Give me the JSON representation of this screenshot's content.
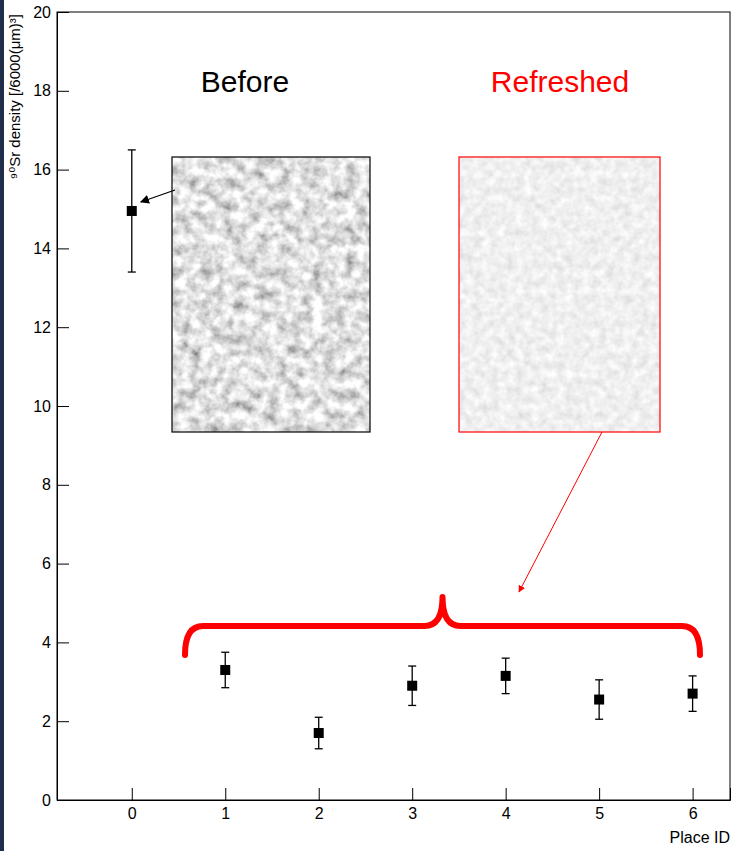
{
  "chart_data": {
    "type": "scatter",
    "x_label": "Place ID",
    "y_label": "⁹⁰Sr density [/6000(μm)³]",
    "annotations": [
      "Before",
      "Refreshed"
    ],
    "x": [
      0,
      1,
      2,
      3,
      4,
      5,
      6
    ],
    "values": [
      14.95,
      3.3,
      1.7,
      2.9,
      3.15,
      2.55,
      2.7
    ],
    "errors": [
      1.55,
      0.45,
      0.4,
      0.5,
      0.45,
      0.5,
      0.45
    ],
    "color": "#000000",
    "marker": "square",
    "xlim": [
      -0.8,
      6.4
    ],
    "xticks": [
      0,
      1,
      2,
      3,
      4,
      5,
      6
    ],
    "ylim": [
      0,
      20
    ],
    "yticks": [
      0,
      2,
      4,
      6,
      8,
      10,
      12,
      14,
      16,
      18,
      20
    ],
    "grid": false
  }
}
